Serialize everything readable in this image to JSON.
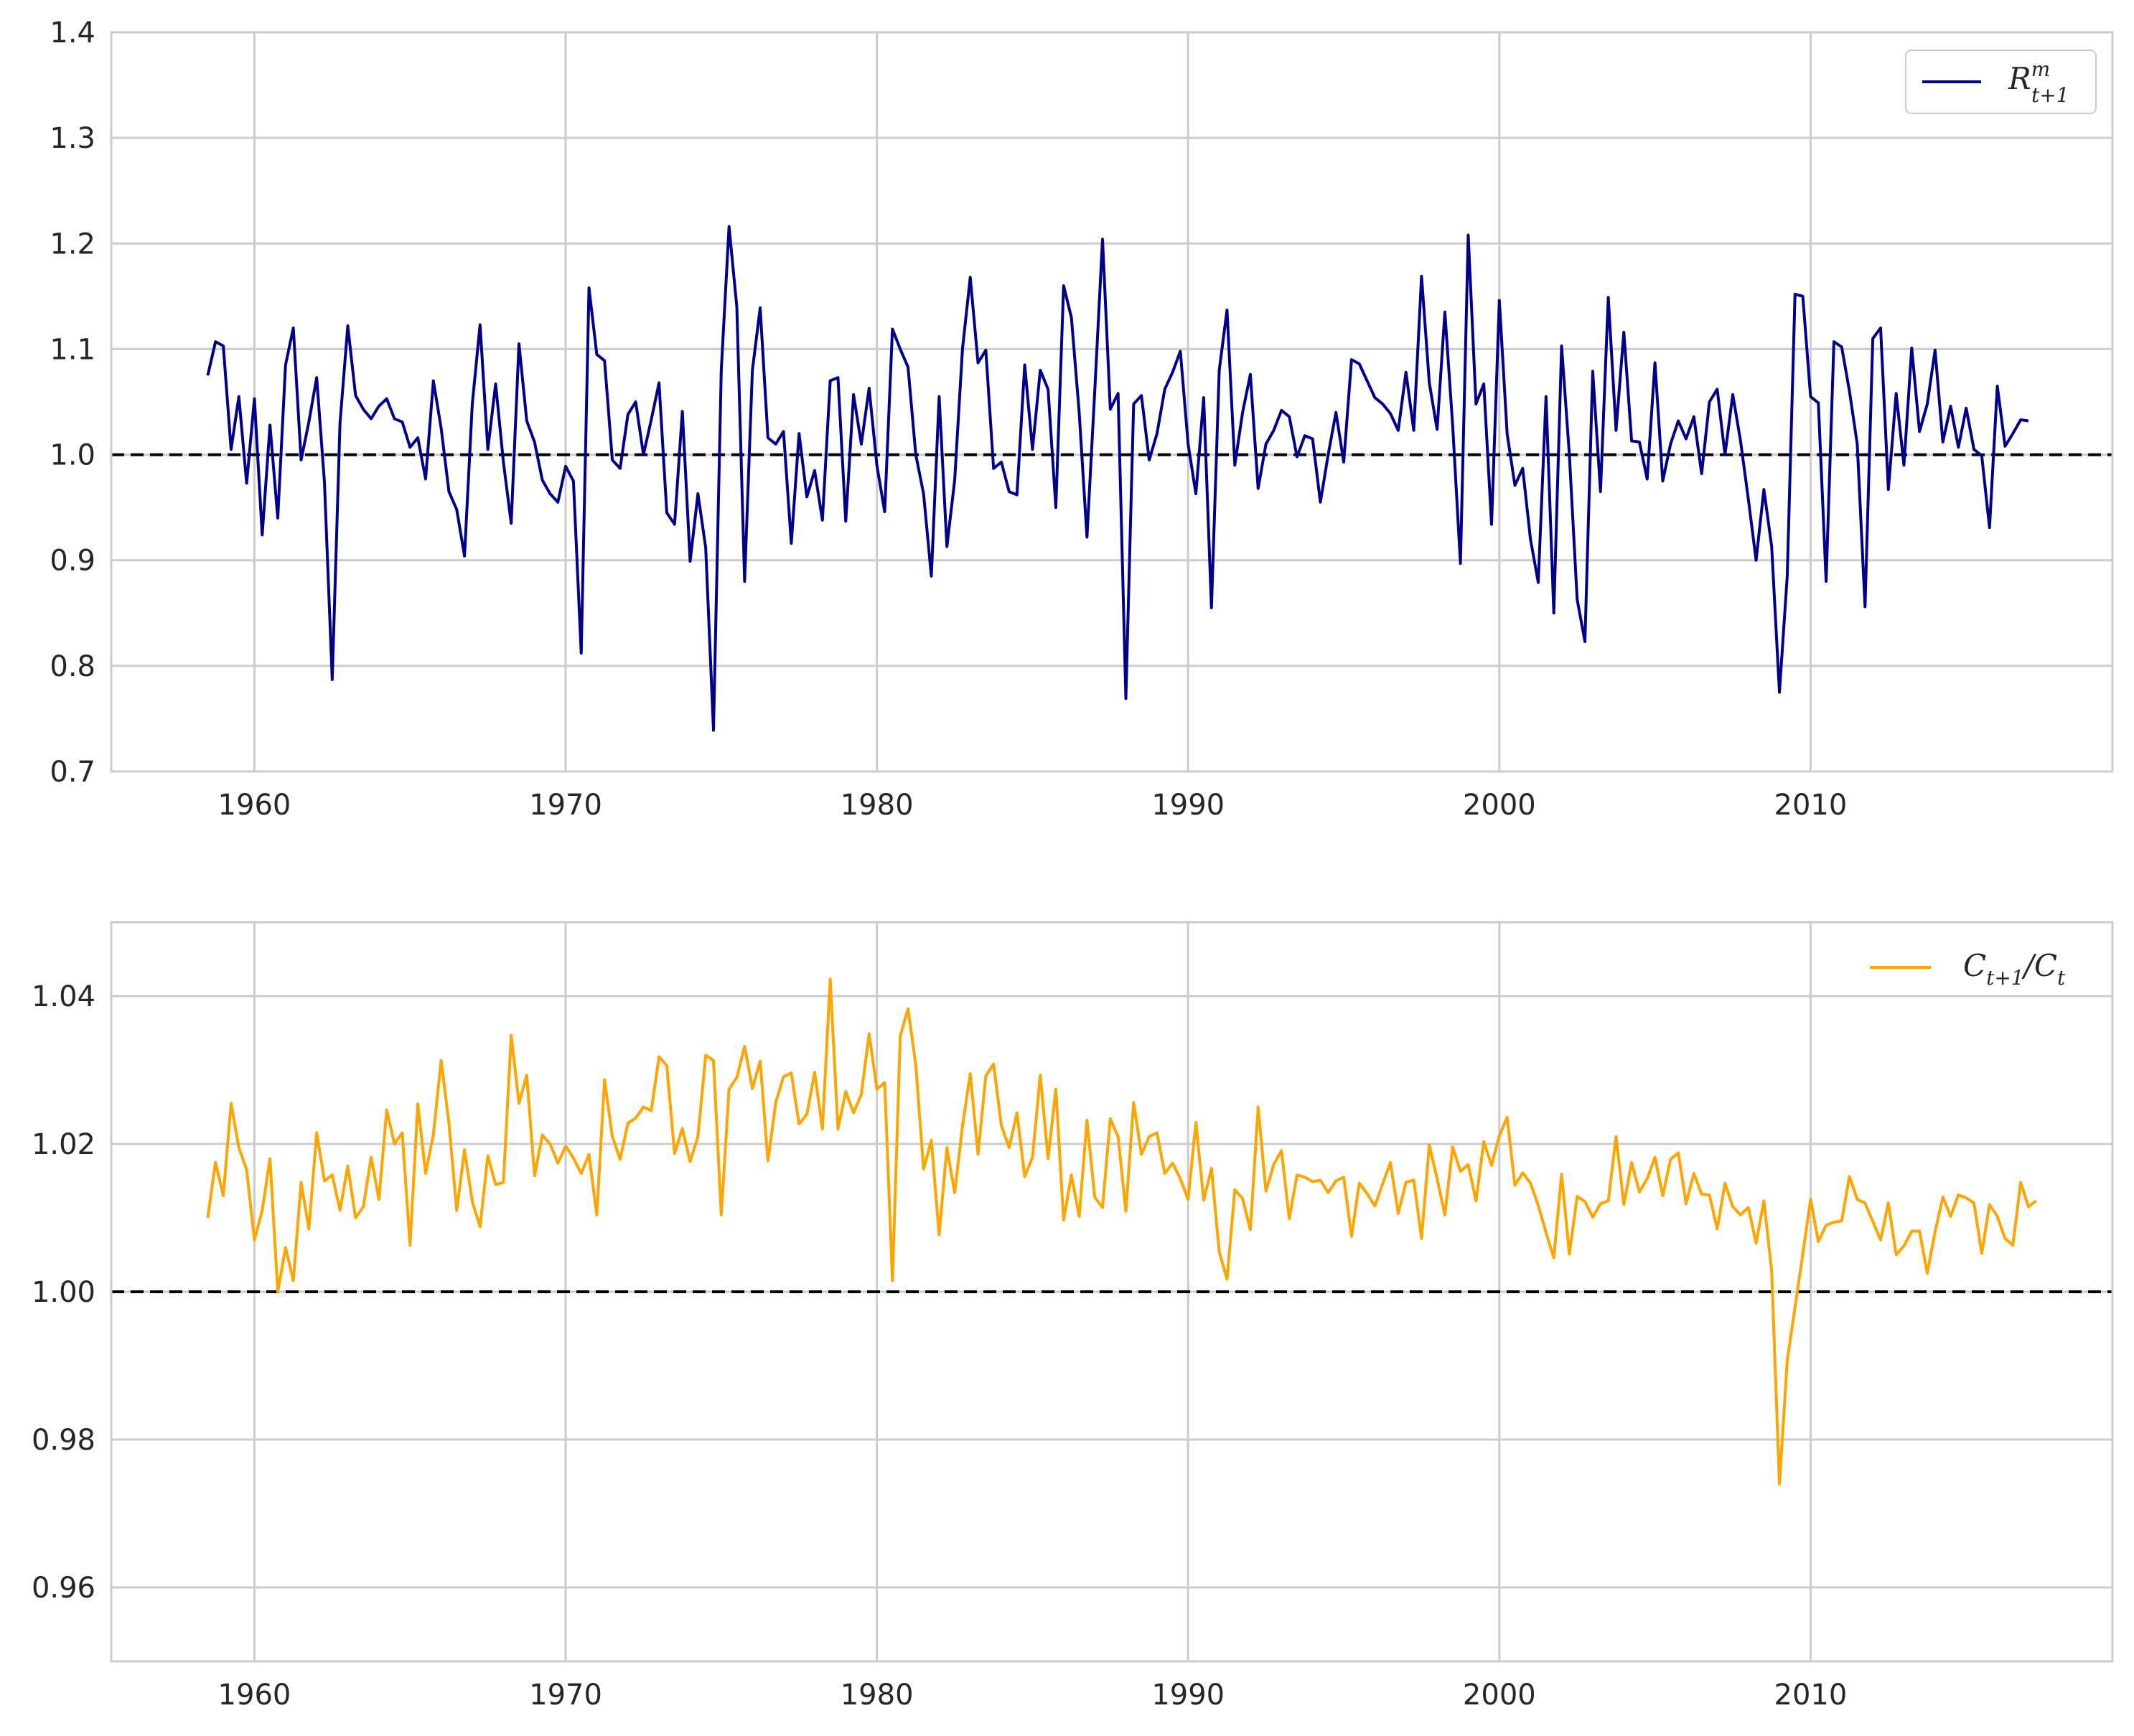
{
  "chart_data": [
    {
      "type": "line",
      "legend": {
        "main": "R",
        "sup": "m",
        "sub": "t+1",
        "placement": "top-right"
      },
      "color": "#00008b",
      "xlim": [
        1955.4,
        2019.7
      ],
      "ylim": [
        0.7,
        1.4
      ],
      "xticks": [
        1960,
        1970,
        1980,
        1990,
        2000,
        2010
      ],
      "xtick_labels": [
        "1960",
        "1970",
        "1980",
        "1990",
        "2000",
        "2010"
      ],
      "yticks": [
        0.7,
        0.8,
        0.9,
        1.0,
        1.1,
        1.2,
        1.3,
        1.4
      ],
      "ytick_labels": [
        "0.7",
        "0.8",
        "0.9",
        "1.0",
        "1.1",
        "1.2",
        "1.3",
        "1.4"
      ],
      "reference_line": 1.0,
      "grid": true,
      "x_start": 1958.5,
      "x_step": 0.25,
      "values": [
        1.075,
        1.107,
        1.103,
        1.005,
        1.055,
        0.973,
        1.053,
        0.924,
        1.028,
        0.94,
        1.085,
        1.12,
        0.995,
        1.031,
        1.073,
        0.974,
        0.787,
        1.03,
        1.122,
        1.056,
        1.043,
        1.034,
        1.046,
        1.053,
        1.034,
        1.031,
        1.007,
        1.016,
        0.977,
        1.07,
        1.025,
        0.965,
        0.948,
        0.904,
        1.048,
        1.123,
        1.005,
        1.067,
        0.993,
        0.935,
        1.105,
        1.032,
        1.012,
        0.976,
        0.963,
        0.955,
        0.989,
        0.975,
        0.812,
        1.158,
        1.095,
        1.089,
        0.995,
        0.987,
        1.038,
        1.05,
        1.0,
        1.033,
        1.068,
        0.945,
        0.934,
        1.041,
        0.899,
        0.963,
        0.912,
        0.739,
        1.08,
        1.216,
        1.14,
        0.88,
        1.08,
        1.139,
        1.016,
        1.01,
        1.022,
        0.916,
        1.02,
        0.96,
        0.985,
        0.938,
        1.07,
        1.073,
        0.937,
        1.057,
        1.01,
        1.063,
        0.99,
        0.946,
        1.119,
        1.1,
        1.083,
        1.0,
        0.963,
        0.885,
        1.055,
        0.913,
        0.976,
        1.1,
        1.168,
        1.087,
        1.099,
        0.987,
        0.993,
        0.965,
        0.962,
        1.085,
        1.005,
        1.08,
        1.062,
        0.95,
        1.16,
        1.13,
        1.04,
        0.922,
        1.06,
        1.204,
        1.043,
        1.058,
        0.769,
        1.048,
        1.056,
        0.995,
        1.02,
        1.062,
        1.078,
        1.098,
        1.01,
        0.963,
        1.054,
        0.855,
        1.08,
        1.137,
        0.99,
        1.04,
        1.076,
        0.968,
        1.01,
        1.023,
        1.042,
        1.036,
        0.998,
        1.018,
        1.015,
        0.955,
        1.0,
        1.04,
        0.993,
        1.09,
        1.086,
        1.07,
        1.054,
        1.048,
        1.039,
        1.023,
        1.078,
        1.023,
        1.169,
        1.068,
        1.024,
        1.135,
        1.028,
        0.897,
        1.208,
        1.048,
        1.067,
        0.934,
        1.146,
        1.02,
        0.971,
        0.987,
        0.92,
        0.879,
        1.055,
        0.85,
        1.103,
        1.0,
        0.863,
        0.823,
        1.079,
        0.965,
        1.149,
        1.023,
        1.116,
        1.013,
        1.012,
        0.977,
        1.087,
        0.975,
        1.01,
        1.032,
        1.015,
        1.036,
        0.982,
        1.05,
        1.062,
        1.0,
        1.057,
        1.013,
        0.958,
        0.9,
        0.967,
        0.913,
        0.775,
        0.885,
        1.152,
        1.15,
        1.055,
        1.049,
        0.88,
        1.107,
        1.102,
        1.06,
        1.01,
        0.856,
        1.11,
        1.12,
        0.967,
        1.058,
        0.99,
        1.101,
        1.022,
        1.048,
        1.099,
        1.012,
        1.046,
        1.007,
        1.044,
        1.005,
        0.999,
        0.931,
        1.065,
        1.008,
        1.02,
        1.033,
        1.032
      ]
    },
    {
      "type": "line",
      "legend": {
        "c1": "C",
        "c1_sub": "t+1",
        "slash": "/",
        "c2": "C",
        "c2_sub": "t",
        "placement": "top-right"
      },
      "color": "#ffa500",
      "xlim": [
        1955.4,
        2019.7
      ],
      "ylim": [
        0.95,
        1.05
      ],
      "xticks": [
        1960,
        1970,
        1980,
        1990,
        2000,
        2010
      ],
      "xtick_labels": [
        "1960",
        "1970",
        "1980",
        "1990",
        "2000",
        "2010"
      ],
      "yticks": [
        0.96,
        0.98,
        1.0,
        1.02,
        1.04
      ],
      "ytick_labels": [
        "0.96",
        "0.98",
        "1.00",
        "1.02",
        "1.04"
      ],
      "reference_line": 1.0,
      "grid": true,
      "x_start": 1958.5,
      "x_step": 0.25,
      "values": [
        1.01,
        1.0175,
        1.013,
        1.0255,
        1.0195,
        1.0165,
        1.007,
        1.011,
        1.018,
        1.0,
        1.006,
        1.0015,
        1.0148,
        1.0085,
        1.0215,
        1.015,
        1.0158,
        1.011,
        1.017,
        1.01,
        1.0115,
        1.0182,
        1.0125,
        1.0246,
        1.02,
        1.0215,
        1.0063,
        1.0254,
        1.016,
        1.0213,
        1.0313,
        1.0228,
        1.011,
        1.0192,
        1.0122,
        1.0088,
        1.0184,
        1.0145,
        1.0148,
        1.0347,
        1.0255,
        1.0293,
        1.0157,
        1.0212,
        1.02,
        1.0174,
        1.0197,
        1.0181,
        1.016,
        1.0186,
        1.0104,
        1.0287,
        1.021,
        1.0179,
        1.0228,
        1.0235,
        1.025,
        1.0245,
        1.0318,
        1.0306,
        1.0187,
        1.0221,
        1.0176,
        1.021,
        1.032,
        1.0313,
        1.0104,
        1.0274,
        1.029,
        1.0332,
        1.0275,
        1.0312,
        1.0177,
        1.0256,
        1.0291,
        1.0296,
        1.0227,
        1.024,
        1.0297,
        1.022,
        1.0423,
        1.022,
        1.0271,
        1.0242,
        1.0267,
        1.0349,
        1.0274,
        1.0283,
        1.0015,
        1.0346,
        1.0383,
        1.0307,
        1.0166,
        1.0205,
        1.0077,
        1.0195,
        1.0134,
        1.0224,
        1.0295,
        1.0186,
        1.0292,
        1.0308,
        1.0225,
        1.0195,
        1.0242,
        1.0156,
        1.0182,
        1.0293,
        1.018,
        1.0274,
        1.0097,
        1.0158,
        1.0102,
        1.0232,
        1.0128,
        1.0114,
        1.0234,
        1.021,
        1.0109,
        1.0256,
        1.0186,
        1.021,
        1.0215,
        1.016,
        1.0174,
        1.0153,
        1.0125,
        1.0229,
        1.0124,
        1.0167,
        1.0054,
        1.0017,
        1.0138,
        1.0126,
        1.0084,
        1.025,
        1.0136,
        1.0172,
        1.0191,
        1.0099,
        1.0158,
        1.0155,
        1.0149,
        1.0151,
        1.0134,
        1.015,
        1.0155,
        1.0075,
        1.0147,
        1.0133,
        1.0116,
        1.0146,
        1.0175,
        1.0106,
        1.0148,
        1.0151,
        1.0072,
        1.0199,
        1.0153,
        1.0104,
        1.0196,
        1.0163,
        1.0172,
        1.0123,
        1.0203,
        1.0171,
        1.0211,
        1.0236,
        1.0144,
        1.0161,
        1.0147,
        1.0117,
        1.008,
        1.0046,
        1.0159,
        1.0051,
        1.0129,
        1.0122,
        1.0101,
        1.0119,
        1.0123,
        1.021,
        1.0118,
        1.0175,
        1.0135,
        1.0153,
        1.0182,
        1.013,
        1.0179,
        1.0188,
        1.0119,
        1.016,
        1.0132,
        1.0131,
        1.0085,
        1.0147,
        1.0115,
        1.0104,
        1.0114,
        1.0066,
        1.0123,
        1.0028,
        0.974,
        0.9907,
        0.9979,
        1.0051,
        1.0125,
        1.0068,
        1.009,
        1.0094,
        1.0096,
        1.0156,
        1.0125,
        1.012,
        1.0095,
        1.007,
        1.012,
        1.005,
        1.0062,
        1.0082,
        1.0082,
        1.0025,
        1.0081,
        1.0128,
        1.0102,
        1.0131,
        1.0127,
        1.012,
        1.0052,
        1.0118,
        1.0102,
        1.0072,
        1.0063,
        1.0148,
        1.0115,
        1.0123
      ]
    }
  ]
}
